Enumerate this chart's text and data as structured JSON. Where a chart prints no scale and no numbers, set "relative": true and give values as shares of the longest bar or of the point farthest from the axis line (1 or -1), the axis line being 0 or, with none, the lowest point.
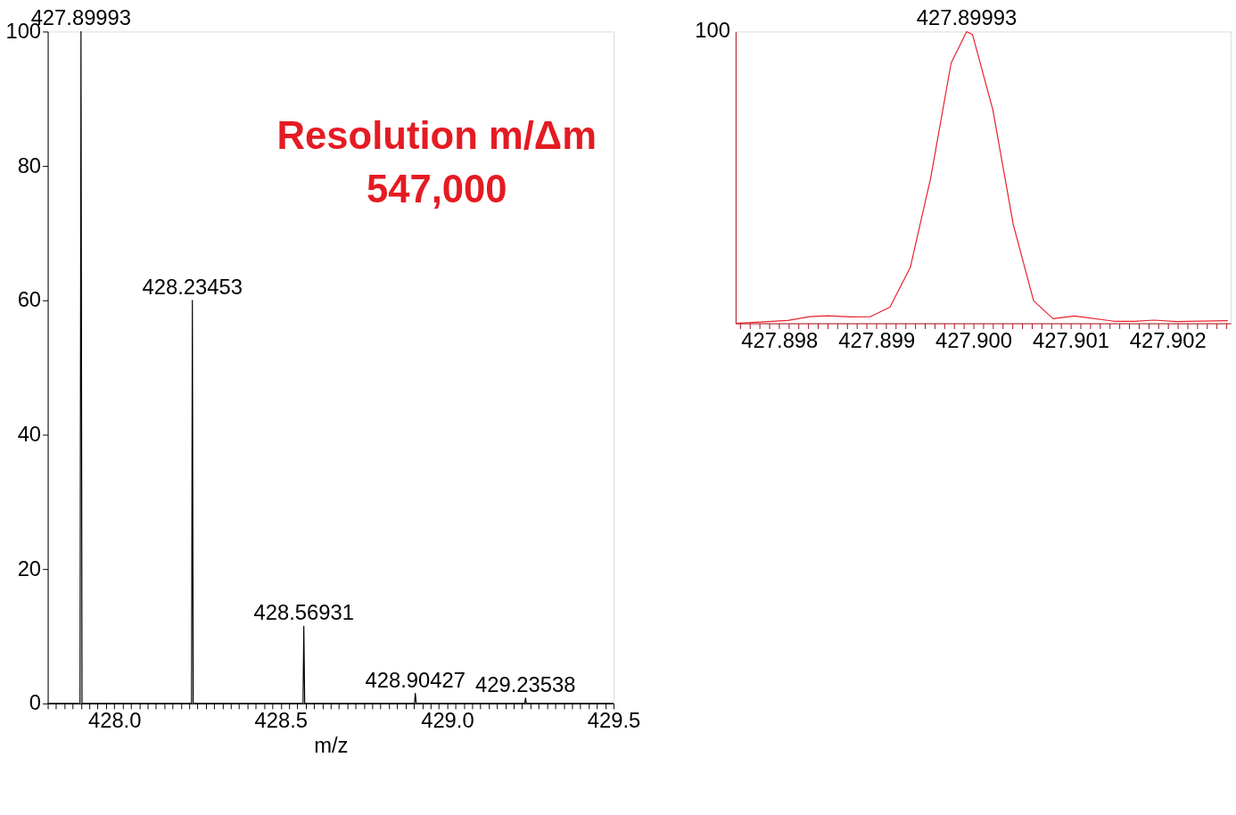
{
  "chart_data": [
    {
      "type": "line",
      "xlabel": "m/z",
      "marker": "none",
      "line_style": "solid",
      "x": [
        427.8,
        427.897,
        427.89993,
        427.903,
        428.232,
        428.23453,
        428.237,
        428.567,
        428.56931,
        428.572,
        428.902,
        428.90427,
        428.907,
        429.233,
        429.23538,
        429.238,
        429.5
      ],
      "series": [
        {
          "color": "#000000",
          "values": [
            0,
            0,
            100,
            0,
            0,
            60,
            0,
            0,
            11.5,
            0,
            0,
            1.5,
            0,
            0,
            0.8,
            0,
            0
          ]
        }
      ],
      "xlim": [
        427.8,
        429.5
      ],
      "ylim": [
        0,
        100
      ],
      "yticks": [
        0,
        20,
        40,
        60,
        80,
        100
      ],
      "xticks": [
        {
          "value": 427.8,
          "label": null
        },
        {
          "value": 427.825,
          "label": null
        },
        {
          "value": 427.85,
          "label": null
        },
        {
          "value": 427.875,
          "label": null
        },
        {
          "value": 427.9,
          "label": null
        },
        {
          "value": 427.925,
          "label": null
        },
        {
          "value": 427.95,
          "label": null
        },
        {
          "value": 427.975,
          "label": null
        },
        {
          "value": 428,
          "label": "428.0"
        },
        {
          "value": 428.025,
          "label": null
        },
        {
          "value": 428.05,
          "label": null
        },
        {
          "value": 428.075,
          "label": null
        },
        {
          "value": 428.1,
          "label": null
        },
        {
          "value": 428.125,
          "label": null
        },
        {
          "value": 428.15,
          "label": null
        },
        {
          "value": 428.175,
          "label": null
        },
        {
          "value": 428.2,
          "label": null
        },
        {
          "value": 428.225,
          "label": null
        },
        {
          "value": 428.25,
          "label": null
        },
        {
          "value": 428.275,
          "label": null
        },
        {
          "value": 428.3,
          "label": null
        },
        {
          "value": 428.325,
          "label": null
        },
        {
          "value": 428.35,
          "label": null
        },
        {
          "value": 428.375,
          "label": null
        },
        {
          "value": 428.4,
          "label": null
        },
        {
          "value": 428.425,
          "label": null
        },
        {
          "value": 428.45,
          "label": null
        },
        {
          "value": 428.475,
          "label": null
        },
        428.5,
        {
          "value": 428.525,
          "label": null
        },
        {
          "value": 428.55,
          "label": null
        },
        {
          "value": 428.575,
          "label": null
        },
        {
          "value": 428.6,
          "label": null
        },
        {
          "value": 428.625,
          "label": null
        },
        {
          "value": 428.65,
          "label": null
        },
        {
          "value": 428.675,
          "label": null
        },
        {
          "value": 428.7,
          "label": null
        },
        {
          "value": 428.725,
          "label": null
        },
        {
          "value": 428.75,
          "label": null
        },
        {
          "value": 428.775,
          "label": null
        },
        {
          "value": 428.8,
          "label": null
        },
        {
          "value": 428.825,
          "label": null
        },
        {
          "value": 428.85,
          "label": null
        },
        {
          "value": 428.875,
          "label": null
        },
        {
          "value": 428.9,
          "label": null
        },
        {
          "value": 428.925,
          "label": null
        },
        {
          "value": 428.95,
          "label": null
        },
        {
          "value": 428.975,
          "label": null
        },
        {
          "value": 429,
          "label": "429.0"
        },
        {
          "value": 429.025,
          "label": null
        },
        {
          "value": 429.05,
          "label": null
        },
        {
          "value": 429.075,
          "label": null
        },
        {
          "value": 429.1,
          "label": null
        },
        {
          "value": 429.125,
          "label": null
        },
        {
          "value": 429.15,
          "label": null
        },
        {
          "value": 429.175,
          "label": null
        },
        {
          "value": 429.2,
          "label": null
        },
        {
          "value": 429.225,
          "label": null
        },
        {
          "value": 429.25,
          "label": null
        },
        {
          "value": 429.275,
          "label": null
        },
        {
          "value": 429.3,
          "label": null
        },
        {
          "value": 429.325,
          "label": null
        },
        {
          "value": 429.35,
          "label": null
        },
        {
          "value": 429.375,
          "label": null
        },
        {
          "value": 429.4,
          "label": null
        },
        {
          "value": 429.425,
          "label": null
        },
        {
          "value": 429.45,
          "label": null
        },
        {
          "value": 429.475,
          "label": null
        },
        429.5
      ],
      "annotations": [
        {
          "text": "427.89993",
          "x": 427.89993,
          "y": 100
        },
        {
          "text": "428.23453",
          "x": 428.23453,
          "y": 60
        },
        {
          "text": "428.56931",
          "x": 428.56931,
          "y": 11.5
        },
        {
          "text": "428.90427",
          "x": 428.90427,
          "y": 1.5
        },
        {
          "text": "429.23538",
          "x": 429.23538,
          "y": 0.8
        },
        "Resolution m/Δm",
        "547,000"
      ]
    },
    {
      "type": "line",
      "marker": "none",
      "line_style": "solid",
      "x": [
        427.89756,
        427.89809,
        427.89831,
        427.8985,
        427.89874,
        427.89894,
        427.89914,
        427.89935,
        427.89956,
        427.89977,
        427.89993,
        427.89999,
        427.9002,
        427.90041,
        427.90062,
        427.90082,
        427.90104,
        427.90145,
        427.90166,
        427.90186,
        427.90209,
        427.90262
      ],
      "series": [
        {
          "color": "#e8202a",
          "values": [
            0,
            0.01,
            0.023,
            0.026,
            0.022,
            0.023,
            0.055,
            0.192,
            0.499,
            0.892,
            1,
            0.99,
            0.732,
            0.339,
            0.077,
            0.016,
            0.025,
            0.007,
            0.007,
            0.011,
            0.006,
            0.009
          ]
        }
      ],
      "relative": true,
      "xlim": [
        427.89755,
        427.90265
      ],
      "xticks": [
        {
          "value": 427.8976,
          "label": null
        },
        {
          "value": 427.8977,
          "label": null
        },
        {
          "value": 427.8978,
          "label": null
        },
        {
          "value": 427.8979,
          "label": null
        },
        427.898,
        {
          "value": 427.8981,
          "label": null
        },
        {
          "value": 427.8982,
          "label": null
        },
        {
          "value": 427.8983,
          "label": null
        },
        {
          "value": 427.8984,
          "label": null
        },
        {
          "value": 427.8985,
          "label": null
        },
        {
          "value": 427.8986,
          "label": null
        },
        {
          "value": 427.8987,
          "label": null
        },
        {
          "value": 427.8988,
          "label": null
        },
        {
          "value": 427.8989,
          "label": null
        },
        427.899,
        {
          "value": 427.8991,
          "label": null
        },
        {
          "value": 427.8992,
          "label": null
        },
        {
          "value": 427.8993,
          "label": null
        },
        {
          "value": 427.8994,
          "label": null
        },
        {
          "value": 427.8995,
          "label": null
        },
        {
          "value": 427.8996,
          "label": null
        },
        {
          "value": 427.8997,
          "label": null
        },
        {
          "value": 427.8998,
          "label": null
        },
        {
          "value": 427.8999,
          "label": null
        },
        {
          "value": 427.9,
          "label": "427.900"
        },
        {
          "value": 427.9001,
          "label": null
        },
        {
          "value": 427.9002,
          "label": null
        },
        {
          "value": 427.9003,
          "label": null
        },
        {
          "value": 427.9004,
          "label": null
        },
        {
          "value": 427.9005,
          "label": null
        },
        {
          "value": 427.9006,
          "label": null
        },
        {
          "value": 427.9007,
          "label": null
        },
        {
          "value": 427.9008,
          "label": null
        },
        {
          "value": 427.9009,
          "label": null
        },
        427.901,
        {
          "value": 427.9011,
          "label": null
        },
        {
          "value": 427.9012,
          "label": null
        },
        {
          "value": 427.9013,
          "label": null
        },
        {
          "value": 427.9014,
          "label": null
        },
        {
          "value": 427.9015,
          "label": null
        },
        {
          "value": 427.9016,
          "label": null
        },
        {
          "value": 427.9017,
          "label": null
        },
        {
          "value": 427.9018,
          "label": null
        },
        {
          "value": 427.9019,
          "label": null
        },
        427.902,
        {
          "value": 427.9021,
          "label": null
        },
        {
          "value": 427.9022,
          "label": null
        },
        {
          "value": 427.9023,
          "label": null
        },
        {
          "value": 427.9024,
          "label": null
        },
        {
          "value": 427.9025,
          "label": null
        },
        {
          "value": 427.9026,
          "label": null
        }
      ],
      "annotations": [
        {
          "text": "427.89993",
          "x": 427.89993,
          "y": 1
        },
        "100"
      ]
    }
  ]
}
